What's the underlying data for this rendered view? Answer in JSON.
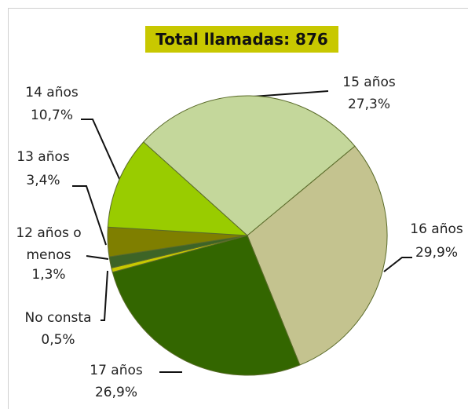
{
  "chart_data": {
    "type": "pie",
    "title": "Total llamadas: 876",
    "categories": [
      "15 años",
      "16 años",
      "17 años",
      "No consta",
      "12 años o menos",
      "13 años",
      "14 años"
    ],
    "values": [
      27.3,
      29.9,
      26.9,
      0.5,
      1.3,
      3.4,
      10.7
    ],
    "value_labels": [
      "27,3%",
      "29,9%",
      "26,9%",
      "0,5%",
      "1,3%",
      "3,4%",
      "10,7%"
    ],
    "colors": [
      "#c4d79b",
      "#c4c38f",
      "#336600",
      "#c8c800",
      "#3d6426",
      "#7f7f00",
      "#99cc00"
    ]
  }
}
